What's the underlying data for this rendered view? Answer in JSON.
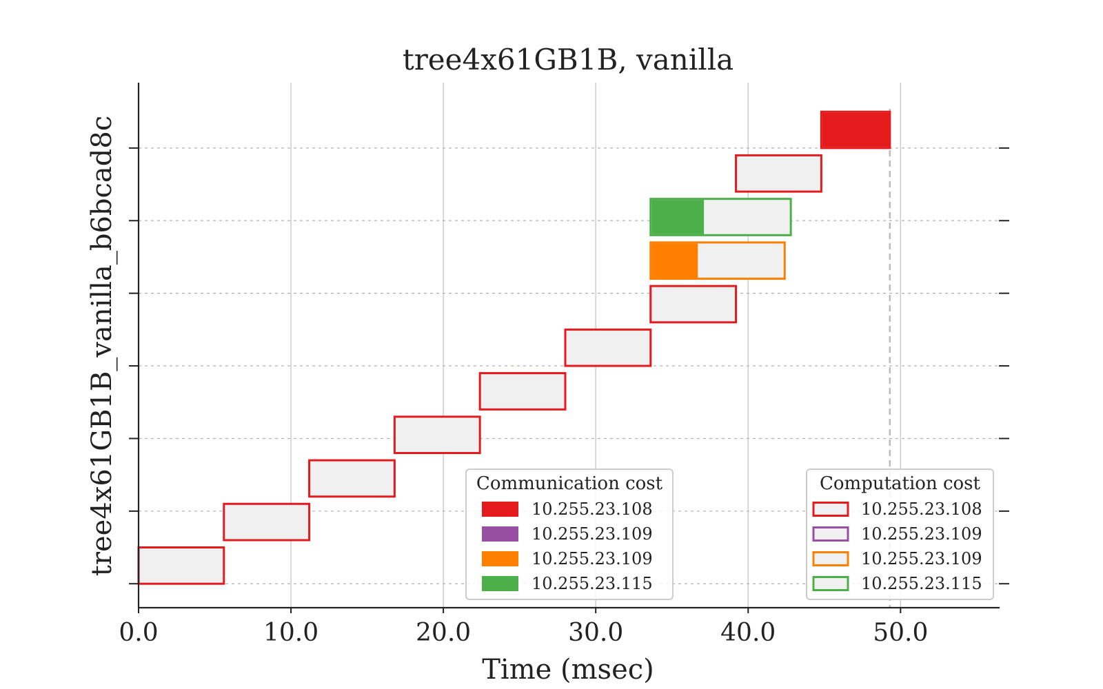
{
  "chart_data": {
    "type": "gantt",
    "title": "tree4x61GB1B, vanilla",
    "xlabel": "Time (msec)",
    "ylabel": "tree4x61GB1B_vanilla_b6bcad8c",
    "xlim": [
      0,
      56.5
    ],
    "xticks": [
      0,
      10,
      20,
      30,
      40,
      50
    ],
    "xtick_labels": [
      "0.0",
      "10.0",
      "20.0",
      "30.0",
      "40.0",
      "50.0"
    ],
    "ylim": [
      -0.33,
      6.9
    ],
    "yticks": [
      0,
      1,
      2,
      3,
      4,
      5,
      6
    ],
    "grid": {
      "x": true,
      "y": "dashed"
    },
    "end_marker": 49.3,
    "bars": [
      {
        "lane": 0.0,
        "start": 0.0,
        "end": 5.6,
        "comm": 0.0,
        "comm_color": "#e41a1c",
        "edge_color": "#e41a1c"
      },
      {
        "lane": 0.6,
        "start": 5.6,
        "end": 11.2,
        "comm": 0.0,
        "comm_color": "#e41a1c",
        "edge_color": "#e41a1c"
      },
      {
        "lane": 1.2,
        "start": 11.2,
        "end": 16.8,
        "comm": 0.0,
        "comm_color": "#e41a1c",
        "edge_color": "#e41a1c"
      },
      {
        "lane": 1.8,
        "start": 16.8,
        "end": 22.4,
        "comm": 0.0,
        "comm_color": "#e41a1c",
        "edge_color": "#e41a1c"
      },
      {
        "lane": 2.4,
        "start": 22.4,
        "end": 28.0,
        "comm": 0.0,
        "comm_color": "#e41a1c",
        "edge_color": "#e41a1c"
      },
      {
        "lane": 3.0,
        "start": 28.0,
        "end": 33.6,
        "comm": 0.0,
        "comm_color": "#e41a1c",
        "edge_color": "#e41a1c"
      },
      {
        "lane": 3.6,
        "start": 33.6,
        "end": 39.2,
        "comm": 0.0,
        "comm_color": "#e41a1c",
        "edge_color": "#e41a1c"
      },
      {
        "lane": 4.2,
        "start": 33.6,
        "end": 42.4,
        "comm": 3.1,
        "comm_color": "#ff7f00",
        "edge_color": "#ff7f00"
      },
      {
        "lane": 4.8,
        "start": 33.6,
        "end": 42.8,
        "comm": 3.5,
        "comm_color": "#4daf4a",
        "edge_color": "#4daf4a"
      },
      {
        "lane": 5.4,
        "start": 39.2,
        "end": 44.8,
        "comm": 0.0,
        "comm_color": "#e41a1c",
        "edge_color": "#e41a1c"
      },
      {
        "lane": 6.0,
        "start": 44.8,
        "end": 49.3,
        "comm": 4.5,
        "comm_color": "#e41a1c",
        "edge_color": "#e41a1c"
      }
    ],
    "legend_comm": {
      "title": "Communication cost",
      "placement": "lower-center",
      "items": [
        {
          "label": "10.255.23.108",
          "color": "#e41a1c"
        },
        {
          "label": "10.255.23.109",
          "color": "#984ea3"
        },
        {
          "label": "10.255.23.109",
          "color": "#ff7f00"
        },
        {
          "label": "10.255.23.115",
          "color": "#4daf4a"
        }
      ]
    },
    "legend_comp": {
      "title": "Computation cost",
      "placement": "lower-right",
      "items": [
        {
          "label": "10.255.23.108",
          "color": "#e41a1c"
        },
        {
          "label": "10.255.23.109",
          "color": "#984ea3"
        },
        {
          "label": "10.255.23.109",
          "color": "#ff7f00"
        },
        {
          "label": "10.255.23.115",
          "color": "#4daf4a"
        }
      ]
    },
    "colors": {
      "computation_fill": "#f0f0f0",
      "axis": "#222222",
      "grid": "#cccccc",
      "end_marker": "#bbbbbb"
    }
  }
}
